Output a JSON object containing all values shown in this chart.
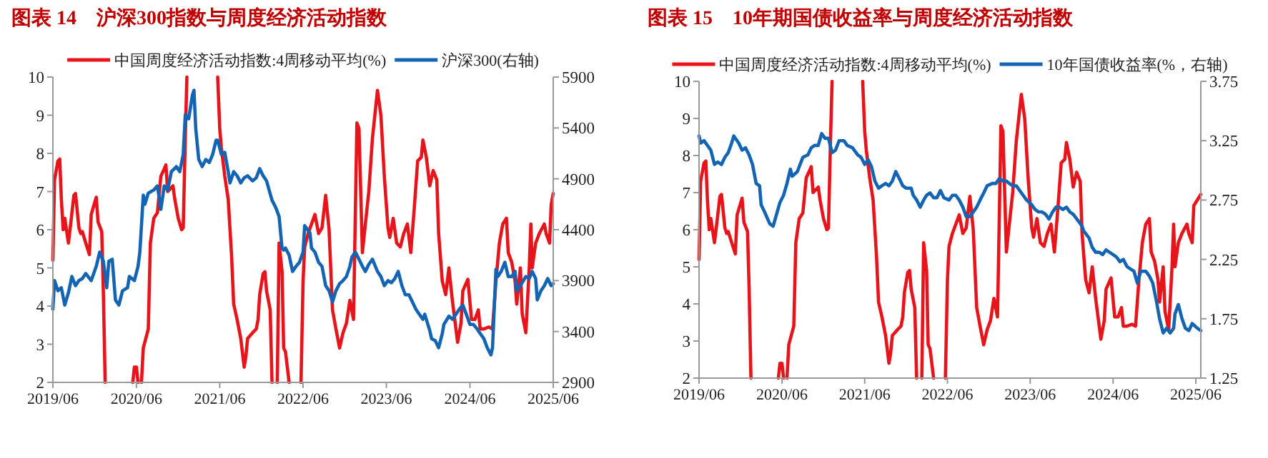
{
  "chart_data": [
    {
      "type": "line",
      "title": "图表 14    沪深300指数与周度经济活动指数",
      "legend": "top",
      "grid": false,
      "xlim": [
        "2019-06-01",
        "2025-06-01"
      ],
      "xticks": [
        {
          "value": "2019-06-01",
          "label": "2019/06"
        },
        {
          "value": "2020-06-01",
          "label": "2020/06"
        },
        {
          "value": "2021-06-01",
          "label": "2021/06"
        },
        {
          "value": "2022-06-01",
          "label": "2022/06"
        },
        {
          "value": "2023-06-01",
          "label": "2023/06"
        },
        {
          "value": "2024-06-01",
          "label": "2024/06"
        },
        {
          "value": "2025-06-01",
          "label": "2025/06"
        }
      ],
      "ylim": [
        2,
        10
      ],
      "yticks": [
        2,
        3,
        4,
        5,
        6,
        7,
        8,
        9,
        10
      ],
      "y2lim": [
        2900,
        5900
      ],
      "y2ticks": [
        2900,
        3400,
        3900,
        4400,
        4900,
        5400,
        5900
      ],
      "series": [
        {
          "name": "中国周度经济活动指数:4周移动平均(%)",
          "color": "#e8141c",
          "x": [
            "2019-06-01",
            "2019-06-08",
            "2019-06-23",
            "2019-07-01",
            "2019-07-08",
            "2019-07-16",
            "2019-07-23",
            "2019-08-08",
            "2019-08-16",
            "2019-09-01",
            "2019-09-08",
            "2019-09-23",
            "2019-10-01",
            "2019-10-08",
            "2019-10-23",
            "2019-11-08",
            "2019-11-16",
            "2019-12-08",
            "2019-12-16",
            "2020-01-01",
            "2020-01-08",
            "2020-01-16",
            "2020-05-16",
            "2020-05-23",
            "2020-06-01",
            "2020-06-08",
            "2020-06-23",
            "2020-07-01",
            "2020-07-23",
            "2020-08-01",
            "2020-08-16",
            "2020-09-01",
            "2020-09-16",
            "2020-10-01",
            "2020-10-08",
            "2020-10-16",
            "2020-11-08",
            "2020-11-16",
            "2020-12-01",
            "2020-12-16",
            "2020-12-23",
            "2021-01-01",
            "2021-01-08",
            "2021-05-23",
            "2021-06-01",
            "2021-06-08",
            "2021-06-23",
            "2021-07-08",
            "2021-07-23",
            "2021-08-01",
            "2021-08-16",
            "2021-09-01",
            "2021-09-16",
            "2021-09-23",
            "2021-10-01",
            "2021-10-23",
            "2021-11-08",
            "2021-11-16",
            "2021-11-23",
            "2021-12-08",
            "2021-12-16",
            "2021-12-23",
            "2022-01-08",
            "2022-01-16",
            "2022-02-08",
            "2022-02-16",
            "2022-03-01",
            "2022-03-08",
            "2022-03-16",
            "2022-04-01",
            "2022-05-23",
            "2022-06-01",
            "2022-06-08",
            "2022-06-23",
            "2022-07-08",
            "2022-07-23",
            "2022-08-08",
            "2022-08-23",
            "2022-09-08",
            "2022-09-23",
            "2022-10-08",
            "2022-10-23",
            "2022-11-08",
            "2022-11-23",
            "2022-12-08",
            "2022-12-23",
            "2023-01-08",
            "2023-01-23",
            "2023-02-01",
            "2023-02-16",
            "2023-03-01",
            "2023-03-16",
            "2023-04-01",
            "2023-04-23",
            "2023-05-08",
            "2023-05-23",
            "2023-06-08",
            "2023-06-16",
            "2023-07-01",
            "2023-07-16",
            "2023-08-01",
            "2023-08-16",
            "2023-09-01",
            "2023-09-16",
            "2023-10-01",
            "2023-10-16",
            "2023-11-01",
            "2023-11-08",
            "2023-11-23",
            "2023-12-08",
            "2023-12-23",
            "2024-01-08",
            "2024-01-16",
            "2024-02-01",
            "2024-02-16",
            "2024-03-01",
            "2024-03-16",
            "2024-04-08",
            "2024-04-23",
            "2024-05-01",
            "2024-05-23",
            "2024-06-08",
            "2024-06-23",
            "2024-07-08",
            "2024-07-16",
            "2024-08-01",
            "2024-08-23",
            "2024-09-08",
            "2024-09-23",
            "2024-10-08",
            "2024-10-23",
            "2024-11-08",
            "2024-11-16",
            "2024-12-01",
            "2024-12-16",
            "2024-12-23",
            "2025-01-08",
            "2025-01-16",
            "2025-02-01",
            "2025-02-16",
            "2025-02-23",
            "2025-03-01",
            "2025-03-16",
            "2025-04-01",
            "2025-04-23",
            "2025-05-01",
            "2025-05-16",
            "2025-05-23",
            "2025-06-01"
          ],
          "values": [
            5.2,
            7.3,
            7.8,
            7.85,
            6.8,
            6.0,
            6.3,
            5.65,
            6.05,
            6.9,
            6.95,
            6.05,
            5.9,
            5.95,
            5.65,
            5.35,
            6.4,
            6.85,
            6.2,
            5.95,
            4.4,
            2,
            2,
            2.4,
            2.4,
            2,
            2,
            2.9,
            3.4,
            5.65,
            6.3,
            6.45,
            7.4,
            7.6,
            7.7,
            7.0,
            7.15,
            6.8,
            6.3,
            6.0,
            6.05,
            8.4,
            10,
            10,
            8.65,
            8.15,
            7.4,
            6.8,
            5.3,
            4.05,
            3.65,
            3.15,
            2.4,
            2.65,
            3.15,
            3.3,
            3.4,
            3.65,
            4.3,
            4.85,
            4.9,
            4.4,
            3.9,
            2,
            2,
            5.65,
            4.9,
            2.9,
            2.8,
            2,
            2,
            4.65,
            5.55,
            5.9,
            6.15,
            6.4,
            5.9,
            6.05,
            6.9,
            6.0,
            3.9,
            3.4,
            2.9,
            3.3,
            3.55,
            4.15,
            3.65,
            8.8,
            8.65,
            5.4,
            6.15,
            7.0,
            8.4,
            9.65,
            9.0,
            7.4,
            6.05,
            5.8,
            6.3,
            5.65,
            5.55,
            5.9,
            6.15,
            5.4,
            6.55,
            7.8,
            7.9,
            8.35,
            7.9,
            7.15,
            7.55,
            7.3,
            5.9,
            4.65,
            4.3,
            5.0,
            4.15,
            3.05,
            3.55,
            4.4,
            4.7,
            3.65,
            3.65,
            3.9,
            3.4,
            3.4,
            3.45,
            3.4,
            4.65,
            5.65,
            6.15,
            6.3,
            5.4,
            5.15,
            4.65,
            4.05,
            5.0,
            3.8,
            3.3,
            5.0,
            6.15,
            5.0,
            5.65,
            5.9,
            6.15,
            5.9,
            5.65,
            6.65,
            6.95
          ]
        },
        {
          "name": "沪深300(右轴)",
          "color": "#1464b4",
          "axis": "y2",
          "x": [
            "2019-06-01",
            "2019-06-08",
            "2019-06-23",
            "2019-07-08",
            "2019-07-23",
            "2019-08-08",
            "2019-08-23",
            "2019-09-08",
            "2019-09-23",
            "2019-10-08",
            "2019-10-23",
            "2019-11-16",
            "2019-12-08",
            "2019-12-23",
            "2020-01-08",
            "2020-01-23",
            "2020-02-01",
            "2020-02-16",
            "2020-03-01",
            "2020-03-16",
            "2020-04-01",
            "2020-04-23",
            "2020-05-01",
            "2020-05-23",
            "2020-06-08",
            "2020-06-16",
            "2020-07-01",
            "2020-07-08",
            "2020-07-23",
            "2020-08-16",
            "2020-09-01",
            "2020-09-16",
            "2020-10-01",
            "2020-10-16",
            "2020-11-01",
            "2020-11-23",
            "2020-12-08",
            "2020-12-23",
            "2021-01-01",
            "2021-01-16",
            "2021-02-01",
            "2021-02-08",
            "2021-02-16",
            "2021-03-01",
            "2021-03-16",
            "2021-04-01",
            "2021-04-16",
            "2021-05-01",
            "2021-05-16",
            "2021-05-23",
            "2021-06-08",
            "2021-06-23",
            "2021-07-08",
            "2021-07-16",
            "2021-08-01",
            "2021-08-16",
            "2021-09-01",
            "2021-09-16",
            "2021-10-01",
            "2021-10-23",
            "2021-11-08",
            "2021-11-23",
            "2021-12-08",
            "2021-12-23",
            "2022-01-16",
            "2022-02-01",
            "2022-02-16",
            "2022-03-01",
            "2022-03-08",
            "2022-03-16",
            "2022-04-01",
            "2022-04-16",
            "2022-05-01",
            "2022-05-16",
            "2022-06-01",
            "2022-06-08",
            "2022-07-01",
            "2022-07-08",
            "2022-07-23",
            "2022-08-08",
            "2022-08-23",
            "2022-09-08",
            "2022-09-23",
            "2022-10-08",
            "2022-10-23",
            "2022-11-08",
            "2022-11-23",
            "2022-12-08",
            "2022-12-23",
            "2023-01-01",
            "2023-01-16",
            "2023-02-01",
            "2023-02-16",
            "2023-03-01",
            "2023-03-16",
            "2023-04-01",
            "2023-04-23",
            "2023-05-08",
            "2023-05-23",
            "2023-06-08",
            "2023-06-23",
            "2023-07-08",
            "2023-07-23",
            "2023-08-08",
            "2023-08-23",
            "2023-09-08",
            "2023-09-23",
            "2023-10-08",
            "2023-10-23",
            "2023-11-08",
            "2023-11-16",
            "2023-12-08",
            "2023-12-16",
            "2024-01-01",
            "2024-01-16",
            "2024-02-01",
            "2024-02-08",
            "2024-03-01",
            "2024-03-16",
            "2024-04-01",
            "2024-04-16",
            "2024-05-01",
            "2024-05-16",
            "2024-06-01",
            "2024-06-16",
            "2024-07-01",
            "2024-07-16",
            "2024-08-01",
            "2024-08-16",
            "2024-09-01",
            "2024-09-08",
            "2024-09-23",
            "2024-10-01",
            "2024-10-16",
            "2024-11-01",
            "2024-11-16",
            "2024-12-01",
            "2024-12-16",
            "2024-12-23",
            "2025-01-08",
            "2025-02-01",
            "2025-02-16",
            "2025-03-01",
            "2025-03-16",
            "2025-03-23",
            "2025-04-08",
            "2025-04-23",
            "2025-05-08",
            "2025-05-23",
            "2025-06-01"
          ],
          "values": [
            3620,
            3900,
            3800,
            3830,
            3660,
            3780,
            3940,
            3850,
            3900,
            3920,
            3970,
            3900,
            4040,
            4180,
            4090,
            3830,
            4090,
            4110,
            3710,
            3660,
            3800,
            3830,
            3940,
            3900,
            4040,
            4180,
            4740,
            4650,
            4760,
            4790,
            4830,
            4600,
            4830,
            4790,
            4970,
            5020,
            4970,
            5140,
            5530,
            5490,
            5720,
            5770,
            5390,
            5090,
            5020,
            5090,
            5060,
            5140,
            5280,
            5280,
            5140,
            5160,
            4970,
            4860,
            4970,
            4930,
            4860,
            4910,
            4930,
            4880,
            4910,
            5000,
            4930,
            4880,
            4690,
            4620,
            4530,
            4220,
            4200,
            4220,
            4150,
            3990,
            4040,
            4080,
            4180,
            4440,
            4370,
            4220,
            4180,
            4080,
            4040,
            3850,
            3800,
            3690,
            3800,
            3870,
            3900,
            3940,
            4040,
            4130,
            4180,
            4110,
            4040,
            3990,
            4060,
            4110,
            3990,
            3940,
            3850,
            3900,
            3880,
            3920,
            3990,
            3850,
            3760,
            3760,
            3690,
            3620,
            3570,
            3520,
            3570,
            3410,
            3330,
            3310,
            3240,
            3380,
            3470,
            3550,
            3520,
            3570,
            3620,
            3660,
            3570,
            3470,
            3470,
            3430,
            3380,
            3330,
            3240,
            3170,
            3240,
            4010,
            3940,
            3990,
            4080,
            3940,
            3940,
            3990,
            3800,
            3850,
            3940,
            3920,
            3990,
            3920,
            3710,
            3800,
            3850,
            3920,
            3850,
            3870
          ]
        }
      ]
    },
    {
      "type": "line",
      "title": "图表 15    10年期国债收益率与周度经济活动指数",
      "legend": "top",
      "grid": false,
      "xlim": [
        "2019-06-01",
        "2025-06-23"
      ],
      "xticks": [
        {
          "value": "2019-06-01",
          "label": "2019/06"
        },
        {
          "value": "2020-06-01",
          "label": "2020/06"
        },
        {
          "value": "2021-06-01",
          "label": "2021/06"
        },
        {
          "value": "2022-06-01",
          "label": "2022/06"
        },
        {
          "value": "2023-06-01",
          "label": "2023/06"
        },
        {
          "value": "2024-06-01",
          "label": "2024/06"
        },
        {
          "value": "2025-06-01",
          "label": "2025/06"
        }
      ],
      "ylim": [
        2,
        10
      ],
      "yticks": [
        2,
        3,
        4,
        5,
        6,
        7,
        8,
        9,
        10
      ],
      "y2lim": [
        1.25,
        3.75
      ],
      "y2ticks": [
        1.25,
        1.75,
        2.25,
        2.75,
        3.25,
        3.75
      ],
      "series": [
        {
          "name": "中国周度经济活动指数:4周移动平均(%)",
          "color": "#e8141c",
          "x": [
            "2019-06-01",
            "2019-06-08",
            "2019-06-23",
            "2019-07-01",
            "2019-07-08",
            "2019-07-16",
            "2019-07-23",
            "2019-08-08",
            "2019-08-16",
            "2019-09-01",
            "2019-09-08",
            "2019-09-23",
            "2019-10-01",
            "2019-10-08",
            "2019-10-23",
            "2019-11-08",
            "2019-11-16",
            "2019-12-08",
            "2019-12-16",
            "2020-01-01",
            "2020-01-08",
            "2020-01-16",
            "2020-05-16",
            "2020-05-23",
            "2020-06-01",
            "2020-06-08",
            "2020-06-23",
            "2020-07-01",
            "2020-07-23",
            "2020-08-01",
            "2020-08-16",
            "2020-09-01",
            "2020-09-16",
            "2020-10-01",
            "2020-10-08",
            "2020-10-16",
            "2020-11-08",
            "2020-11-16",
            "2020-12-01",
            "2020-12-16",
            "2020-12-23",
            "2021-01-01",
            "2021-01-08",
            "2021-05-23",
            "2021-06-01",
            "2021-06-08",
            "2021-06-23",
            "2021-07-08",
            "2021-07-23",
            "2021-08-01",
            "2021-08-16",
            "2021-09-01",
            "2021-09-16",
            "2021-09-23",
            "2021-10-01",
            "2021-10-23",
            "2021-11-08",
            "2021-11-16",
            "2021-11-23",
            "2021-12-08",
            "2021-12-16",
            "2021-12-23",
            "2022-01-08",
            "2022-01-16",
            "2022-02-08",
            "2022-02-16",
            "2022-03-01",
            "2022-03-08",
            "2022-03-16",
            "2022-04-01",
            "2022-05-23",
            "2022-06-01",
            "2022-06-08",
            "2022-06-23",
            "2022-07-08",
            "2022-07-23",
            "2022-08-08",
            "2022-08-23",
            "2022-09-08",
            "2022-09-23",
            "2022-10-08",
            "2022-10-23",
            "2022-11-08",
            "2022-11-23",
            "2022-12-08",
            "2022-12-23",
            "2023-01-08",
            "2023-01-23",
            "2023-02-01",
            "2023-02-16",
            "2023-03-01",
            "2023-03-16",
            "2023-04-01",
            "2023-04-23",
            "2023-05-08",
            "2023-05-23",
            "2023-06-08",
            "2023-06-16",
            "2023-07-01",
            "2023-07-16",
            "2023-08-01",
            "2023-08-16",
            "2023-09-01",
            "2023-09-16",
            "2023-10-01",
            "2023-10-16",
            "2023-11-01",
            "2023-11-08",
            "2023-11-23",
            "2023-12-08",
            "2023-12-23",
            "2024-01-08",
            "2024-01-16",
            "2024-02-01",
            "2024-02-16",
            "2024-03-01",
            "2024-03-16",
            "2024-04-08",
            "2024-04-23",
            "2024-05-01",
            "2024-05-23",
            "2024-06-08",
            "2024-06-23",
            "2024-07-08",
            "2024-07-16",
            "2024-08-01",
            "2024-08-23",
            "2024-09-08",
            "2024-09-23",
            "2024-10-08",
            "2024-10-23",
            "2024-11-08",
            "2024-11-16",
            "2024-12-01",
            "2024-12-16",
            "2024-12-23",
            "2025-01-08",
            "2025-01-16",
            "2025-02-01",
            "2025-02-16",
            "2025-02-23",
            "2025-03-01",
            "2025-03-16",
            "2025-04-01",
            "2025-04-23",
            "2025-05-01",
            "2025-05-16",
            "2025-05-23",
            "2025-06-23"
          ],
          "values": [
            5.2,
            7.3,
            7.8,
            7.85,
            6.8,
            6.0,
            6.3,
            5.65,
            6.05,
            6.9,
            6.95,
            6.05,
            5.9,
            5.95,
            5.65,
            5.35,
            6.4,
            6.85,
            6.2,
            5.95,
            4.4,
            2,
            2,
            2.4,
            2.4,
            2,
            2,
            2.9,
            3.4,
            5.65,
            6.3,
            6.45,
            7.4,
            7.6,
            7.7,
            7.0,
            7.15,
            6.8,
            6.3,
            6.0,
            6.05,
            8.4,
            10,
            10,
            8.65,
            8.15,
            7.4,
            6.8,
            5.3,
            4.05,
            3.65,
            3.15,
            2.4,
            2.65,
            3.15,
            3.3,
            3.4,
            3.65,
            4.3,
            4.85,
            4.9,
            4.4,
            3.9,
            2,
            2,
            5.65,
            4.9,
            2.9,
            2.8,
            2,
            2,
            4.65,
            5.55,
            5.9,
            6.15,
            6.4,
            5.9,
            6.05,
            6.9,
            6.0,
            3.9,
            3.4,
            2.9,
            3.3,
            3.55,
            4.15,
            3.65,
            8.8,
            8.65,
            5.4,
            6.15,
            7.0,
            8.4,
            9.65,
            9.0,
            7.4,
            6.05,
            5.8,
            6.3,
            5.65,
            5.55,
            5.9,
            6.15,
            5.4,
            6.55,
            7.8,
            7.9,
            8.35,
            7.9,
            7.15,
            7.55,
            7.3,
            5.9,
            4.65,
            4.3,
            5.0,
            4.15,
            3.05,
            3.55,
            4.4,
            4.7,
            3.65,
            3.65,
            3.9,
            3.4,
            3.4,
            3.45,
            3.4,
            4.65,
            5.65,
            6.15,
            6.3,
            5.4,
            5.15,
            4.65,
            4.05,
            5.0,
            3.8,
            3.3,
            5.0,
            6.15,
            5.0,
            5.65,
            5.9,
            6.15,
            5.9,
            5.65,
            6.65,
            6.95
          ]
        },
        {
          "name": "10年国债收益率(%，右轴)",
          "color": "#1464b4",
          "axis": "y2",
          "x": [
            "2019-06-01",
            "2019-06-08",
            "2019-06-23",
            "2019-07-08",
            "2019-07-23",
            "2019-08-08",
            "2019-08-23",
            "2019-09-08",
            "2019-09-23",
            "2019-10-08",
            "2019-10-23",
            "2019-11-01",
            "2019-11-23",
            "2019-12-08",
            "2019-12-23",
            "2020-01-08",
            "2020-01-23",
            "2020-02-08",
            "2020-02-23",
            "2020-03-01",
            "2020-03-16",
            "2020-04-08",
            "2020-04-23",
            "2020-05-08",
            "2020-05-23",
            "2020-06-08",
            "2020-06-23",
            "2020-07-08",
            "2020-07-16",
            "2020-08-08",
            "2020-08-16",
            "2020-09-01",
            "2020-09-23",
            "2020-10-08",
            "2020-10-23",
            "2020-11-08",
            "2020-11-23",
            "2020-12-08",
            "2020-12-23",
            "2021-01-08",
            "2021-01-23",
            "2021-02-08",
            "2021-03-01",
            "2021-03-16",
            "2021-04-08",
            "2021-05-01",
            "2021-05-16",
            "2021-06-01",
            "2021-06-16",
            "2021-07-01",
            "2021-07-16",
            "2021-08-01",
            "2021-08-16",
            "2021-09-01",
            "2021-09-16",
            "2021-10-01",
            "2021-10-16",
            "2021-11-01",
            "2021-11-16",
            "2021-12-01",
            "2021-12-23",
            "2022-01-01",
            "2022-01-16",
            "2022-02-01",
            "2022-02-16",
            "2022-03-01",
            "2022-03-16",
            "2022-04-01",
            "2022-04-16",
            "2022-05-01",
            "2022-05-16",
            "2022-06-08",
            "2022-06-23",
            "2022-07-08",
            "2022-07-23",
            "2022-08-08",
            "2022-08-23",
            "2022-09-08",
            "2022-09-23",
            "2022-10-08",
            "2022-10-23",
            "2022-11-08",
            "2022-11-23",
            "2022-12-16",
            "2023-01-01",
            "2023-01-16",
            "2023-02-01",
            "2023-02-16",
            "2023-03-01",
            "2023-03-16",
            "2023-04-01",
            "2023-04-16",
            "2023-05-01",
            "2023-05-16",
            "2023-06-08",
            "2023-06-23",
            "2023-07-08",
            "2023-07-23",
            "2023-08-08",
            "2023-08-23",
            "2023-09-08",
            "2023-09-23",
            "2023-10-08",
            "2023-10-23",
            "2023-11-08",
            "2023-11-23",
            "2023-12-08",
            "2024-01-01",
            "2024-01-16",
            "2024-01-23",
            "2024-02-16",
            "2024-03-01",
            "2024-03-16",
            "2024-04-01",
            "2024-04-16",
            "2024-05-01",
            "2024-05-16",
            "2024-06-01",
            "2024-06-16",
            "2024-07-01",
            "2024-07-16",
            "2024-08-01",
            "2024-08-16",
            "2024-09-01",
            "2024-09-16",
            "2024-10-01",
            "2024-10-23",
            "2024-11-08",
            "2024-11-23",
            "2024-12-08",
            "2024-12-23",
            "2025-01-08",
            "2025-01-23",
            "2025-02-08",
            "2025-02-23",
            "2025-03-01",
            "2025-03-16",
            "2025-04-01",
            "2025-04-16",
            "2025-05-01",
            "2025-05-16",
            "2025-06-08",
            "2025-06-23"
          ],
          "values": [
            3.29,
            3.23,
            3.25,
            3.21,
            3.17,
            3.05,
            3.07,
            3.05,
            3.11,
            3.15,
            3.23,
            3.29,
            3.23,
            3.17,
            3.19,
            3.13,
            3.05,
            2.89,
            2.87,
            2.71,
            2.65,
            2.55,
            2.53,
            2.63,
            2.73,
            2.79,
            2.89,
            3.01,
            2.95,
            2.99,
            3.03,
            3.11,
            3.13,
            3.19,
            3.21,
            3.21,
            3.31,
            3.27,
            3.27,
            3.15,
            3.17,
            3.25,
            3.25,
            3.21,
            3.19,
            3.13,
            3.11,
            3.05,
            3.09,
            3.03,
            2.91,
            2.85,
            2.87,
            2.89,
            2.87,
            2.91,
            2.99,
            2.93,
            2.87,
            2.85,
            2.85,
            2.79,
            2.75,
            2.69,
            2.75,
            2.79,
            2.81,
            2.77,
            2.77,
            2.83,
            2.77,
            2.75,
            2.79,
            2.79,
            2.75,
            2.69,
            2.61,
            2.61,
            2.65,
            2.69,
            2.75,
            2.81,
            2.87,
            2.89,
            2.89,
            2.93,
            2.91,
            2.91,
            2.89,
            2.87,
            2.87,
            2.83,
            2.79,
            2.75,
            2.71,
            2.67,
            2.65,
            2.65,
            2.63,
            2.59,
            2.65,
            2.69,
            2.69,
            2.67,
            2.69,
            2.65,
            2.63,
            2.57,
            2.53,
            2.49,
            2.43,
            2.35,
            2.31,
            2.31,
            2.29,
            2.33,
            2.31,
            2.29,
            2.27,
            2.23,
            2.25,
            2.19,
            2.17,
            2.15,
            2.05,
            2.15,
            2.15,
            2.11,
            2.05,
            1.91,
            1.75,
            1.63,
            1.67,
            1.63,
            1.67,
            1.79,
            1.87,
            1.75,
            1.67,
            1.65,
            1.71,
            1.67,
            1.65
          ]
        }
      ]
    }
  ]
}
